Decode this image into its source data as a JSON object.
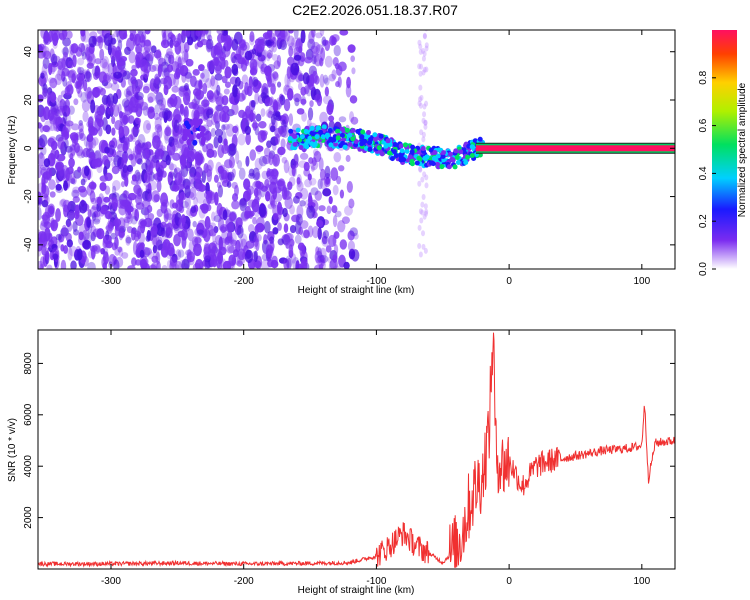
{
  "title": "C2E2.2026.051.18.37.R07",
  "chart_data": [
    {
      "type": "heatmap",
      "xlabel": "Height of straight line (km)",
      "ylabel": "Frequency (Hz)",
      "xlim": [
        -355,
        125
      ],
      "ylim": [
        -50,
        49
      ],
      "xticks": [
        -300,
        -200,
        -100,
        0,
        100
      ],
      "yticks": [
        -40,
        -20,
        0,
        20,
        40
      ],
      "colorbar": {
        "label": "Normalized spectral amplitude",
        "range": [
          0,
          1
        ],
        "ticks": [
          0.0,
          0.2,
          0.4,
          0.6,
          0.8
        ]
      },
      "ridge": [
        {
          "x": -240,
          "y": 6
        },
        {
          "x": -160,
          "y": 4
        },
        {
          "x": -140,
          "y": 5
        },
        {
          "x": -120,
          "y": 4
        },
        {
          "x": -100,
          "y": 2
        },
        {
          "x": -80,
          "y": -2
        },
        {
          "x": -60,
          "y": -4
        },
        {
          "x": -40,
          "y": -4
        },
        {
          "x": -25,
          "y": 0
        },
        {
          "x": 0,
          "y": 0
        },
        {
          "x": 125,
          "y": 0
        }
      ]
    },
    {
      "type": "line",
      "xlabel": "Height of straight line (km)",
      "ylabel": "SNR (10 * v/v)",
      "xlim": [
        -355,
        125
      ],
      "ylim": [
        0,
        9300
      ],
      "xticks": [
        -300,
        -200,
        -100,
        0,
        100
      ],
      "yticks": [
        2000,
        4000,
        6000,
        8000
      ],
      "color": "#f03030",
      "series": [
        {
          "x": [
            -355,
            -300,
            -250,
            -200,
            -150,
            -120,
            -100,
            -90,
            -80,
            -70,
            -60,
            -50,
            -40,
            -35,
            -30,
            -25,
            -20,
            -15,
            -12,
            -10,
            -5,
            0,
            10,
            20,
            30,
            50,
            70,
            90,
            100,
            102,
            105,
            110,
            125
          ],
          "y": [
            200,
            200,
            230,
            200,
            220,
            250,
            500,
            900,
            1400,
            900,
            600,
            250,
            800,
            1500,
            2500,
            3200,
            3600,
            5500,
            9300,
            4500,
            4000,
            4200,
            3200,
            4000,
            4200,
            4400,
            4600,
            4700,
            4800,
            6500,
            3500,
            4900,
            5000
          ]
        }
      ]
    }
  ]
}
